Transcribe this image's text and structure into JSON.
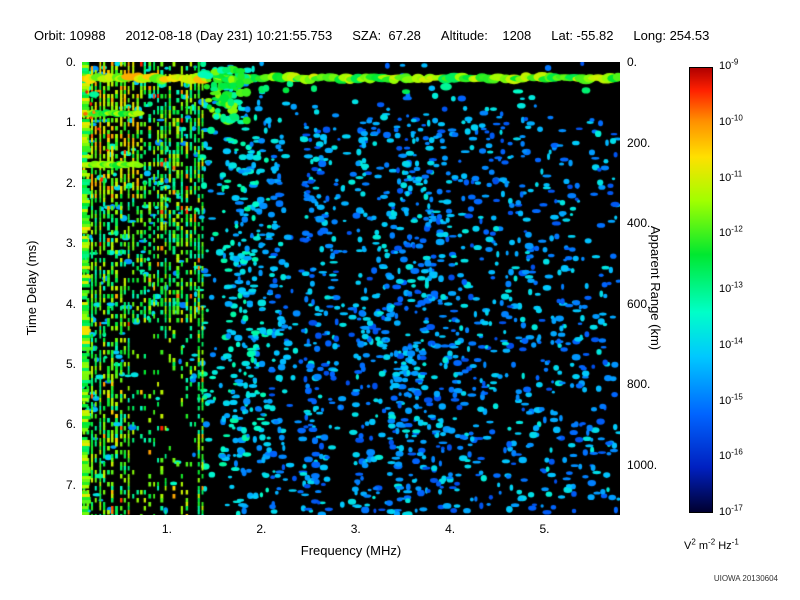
{
  "header": {
    "orbit": "Orbit: 10988",
    "datetime": "2012-08-18 (Day 231) 10:21:55.753",
    "sza": "SZA:  67.28",
    "altitude": "Altitude:    1208",
    "lat": "Lat: -55.82",
    "long": "Long: 254.53"
  },
  "watermark": "UIOWA 20130604",
  "chart_data": {
    "type": "heatmap",
    "title": "",
    "xlabel": "Frequency (MHz)",
    "ylabel": "Time Delay (ms)",
    "y2label": "Apparent Range (km)",
    "xlim": [
      0.1,
      5.8
    ],
    "ylim": [
      0,
      7.5
    ],
    "y2lim": [
      0,
      1124
    ],
    "x_tick_values": [
      1,
      2,
      3,
      4,
      5
    ],
    "x_tick_labels": [
      "1.",
      "2.",
      "3.",
      "4.",
      "5."
    ],
    "y_tick_values": [
      0,
      1,
      2,
      3,
      4,
      5,
      6,
      7
    ],
    "y_tick_labels": [
      "0.",
      "1.",
      "2.",
      "3.",
      "4.",
      "5.",
      "6.",
      "7."
    ],
    "y2_tick_values": [
      0,
      200,
      400,
      600,
      800,
      1000
    ],
    "y2_tick_labels": [
      "0.",
      "200.",
      "400.",
      "600.",
      "800.",
      "1000."
    ],
    "colorbar": {
      "tick_base": "10",
      "tick_exponents": [
        "-9",
        "-10",
        "-11",
        "-12",
        "-13",
        "-14",
        "-15",
        "-16",
        "-17"
      ],
      "unit_label_parts": [
        [
          "V",
          "2"
        ],
        [
          "m",
          "-2"
        ],
        [
          "Hz",
          "-1"
        ]
      ],
      "gradient_stops": [
        [
          0.0,
          "#b00000"
        ],
        [
          0.05,
          "#ff2000"
        ],
        [
          0.12,
          "#ff9000"
        ],
        [
          0.2,
          "#ffe000"
        ],
        [
          0.3,
          "#a0ff00"
        ],
        [
          0.42,
          "#00e830"
        ],
        [
          0.55,
          "#00ffc8"
        ],
        [
          0.65,
          "#00c8ff"
        ],
        [
          0.78,
          "#0064ff"
        ],
        [
          0.9,
          "#0020c0"
        ],
        [
          1.0,
          "#000030"
        ]
      ]
    },
    "features": {
      "seed": 7,
      "background": "#000000",
      "surface_band": {
        "delay_ms": 0.27,
        "thickness_ms": 0.25,
        "intensity": 0.62
      },
      "plasma_stripes": {
        "min_freq_mhz": 0.12,
        "max_freq_mhz": 1.38,
        "count": 30,
        "intensity": 0.58
      },
      "cusp": {
        "freq_range": [
          1.38,
          1.85
        ],
        "delay_range": [
          0.1,
          1.2
        ],
        "intensity": 0.55
      },
      "speckle": {
        "count": 4200,
        "intensity_range": [
          0.18,
          0.42
        ]
      },
      "dark_patch": {
        "freq_range": [
          0.6,
          1.3
        ],
        "delay_range": [
          4.3,
          7.5
        ]
      },
      "void_lanes": [
        1.5,
        2.35,
        2.9
      ],
      "dense_lanes": [
        1.72,
        3.6
      ],
      "echo_lines_delay_ms": [
        0.85,
        1.7
      ],
      "echo_lines_max_freq_mhz": 0.72
    }
  }
}
